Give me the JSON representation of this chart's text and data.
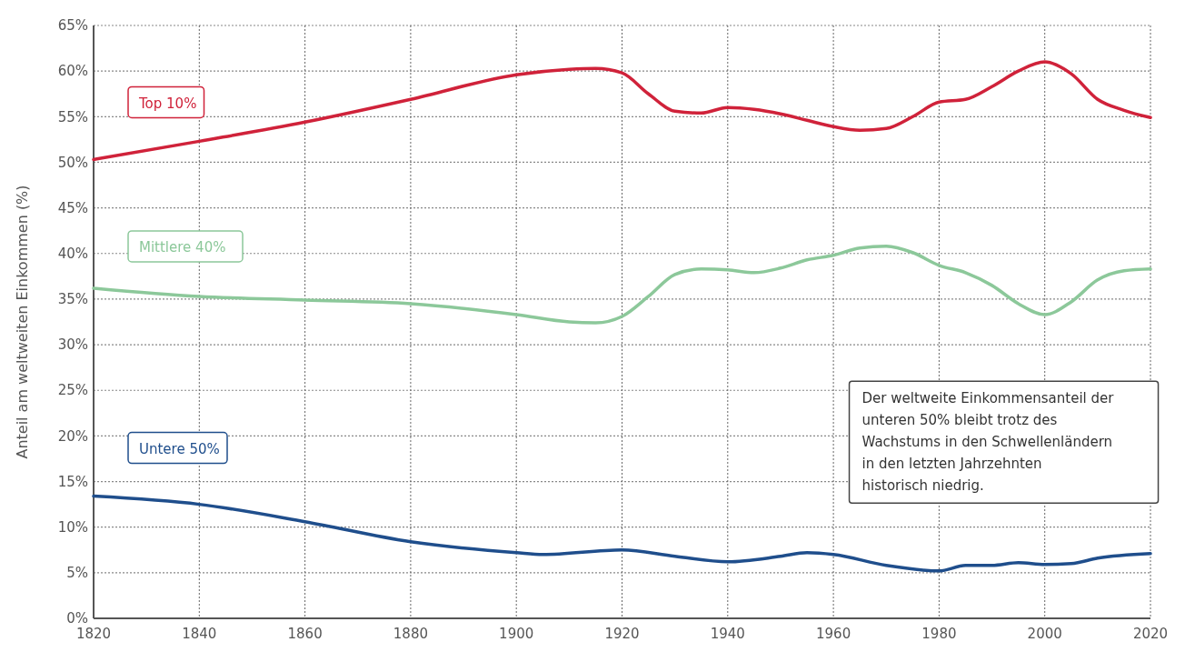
{
  "chart_data": {
    "type": "line",
    "ylabel": "Anteil am weltweiten Einkommen (%)",
    "xlim": [
      1820,
      2020
    ],
    "xticks": [
      1820,
      1840,
      1860,
      1880,
      1900,
      1920,
      1940,
      1960,
      1980,
      2000,
      2020
    ],
    "ylim": [
      0,
      65
    ],
    "yticks": [
      {
        "value": 0,
        "label": "0%"
      },
      {
        "value": 5,
        "label": "5%"
      },
      {
        "value": 10,
        "label": "10%"
      },
      {
        "value": 15,
        "label": "15%"
      },
      {
        "value": 20,
        "label": "20%"
      },
      {
        "value": 25,
        "label": "25%"
      },
      {
        "value": 30,
        "label": "30%"
      },
      {
        "value": 35,
        "label": "35%"
      },
      {
        "value": 40,
        "label": "40%"
      },
      {
        "value": 45,
        "label": "45%"
      },
      {
        "value": 50,
        "label": "50%"
      },
      {
        "value": 55,
        "label": "55%"
      },
      {
        "value": 60,
        "label": "60%"
      },
      {
        "value": 65,
        "label": "65%"
      }
    ],
    "grid": true,
    "line_style": "solid",
    "marker": "none",
    "series": [
      {
        "name": "Top 10%",
        "color": "#d0223a",
        "x": [
          1820,
          1840,
          1860,
          1880,
          1900,
          1910,
          1915,
          1920,
          1925,
          1930,
          1935,
          1940,
          1945,
          1950,
          1955,
          1960,
          1965,
          1970,
          1975,
          1980,
          1985,
          1990,
          1995,
          2000,
          2005,
          2010,
          2015,
          2020
        ],
        "values": [
          50.3,
          52.3,
          54.4,
          56.9,
          59.6,
          60.2,
          60.3,
          59.8,
          57.5,
          55.6,
          55.4,
          56.0,
          55.8,
          55.3,
          54.6,
          53.9,
          53.5,
          53.7,
          55.0,
          56.6,
          56.9,
          58.3,
          60.0,
          61.0,
          59.7,
          56.9,
          55.7,
          54.9
        ]
      },
      {
        "name": "Mittlere 40%",
        "color": "#8cc89a",
        "x": [
          1820,
          1840,
          1860,
          1880,
          1900,
          1910,
          1915,
          1920,
          1925,
          1930,
          1935,
          1940,
          1945,
          1950,
          1955,
          1960,
          1965,
          1970,
          1975,
          1980,
          1985,
          1990,
          1995,
          2000,
          2005,
          2010,
          2015,
          2020
        ],
        "values": [
          36.2,
          35.3,
          34.9,
          34.5,
          33.3,
          32.5,
          32.4,
          33.1,
          35.3,
          37.7,
          38.3,
          38.2,
          37.9,
          38.4,
          39.3,
          39.8,
          40.6,
          40.8,
          40.1,
          38.7,
          37.9,
          36.5,
          34.5,
          33.3,
          34.7,
          37.1,
          38.1,
          38.3
        ]
      },
      {
        "name": "Untere 50%",
        "color": "#1f4e8c",
        "x": [
          1820,
          1840,
          1860,
          1880,
          1900,
          1905,
          1920,
          1930,
          1940,
          1950,
          1955,
          1960,
          1970,
          1980,
          1985,
          1990,
          1995,
          2000,
          2005,
          2010,
          2020
        ],
        "values": [
          13.4,
          12.5,
          10.6,
          8.4,
          7.2,
          7.0,
          7.5,
          6.8,
          6.2,
          6.8,
          7.2,
          7.0,
          5.8,
          5.2,
          5.8,
          5.8,
          6.1,
          5.9,
          6.0,
          6.6,
          7.1
        ]
      }
    ],
    "annotations": [
      "Der weltweite Einkommensanteil der unteren 50% bleibt trotz des Wachstums in den Schwellenländern in den letzten Jahrzehnten historisch niedrig."
    ]
  }
}
